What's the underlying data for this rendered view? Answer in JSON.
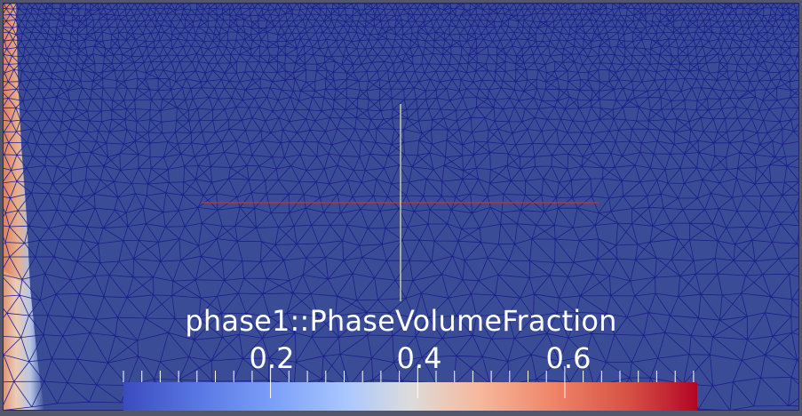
{
  "colorbar": {
    "title": "phase1::PhaseVolumeFraction",
    "tick_labels": [
      "0.2",
      "0.4",
      "0.6"
    ],
    "tick_values": [
      0.2,
      0.4,
      0.6
    ],
    "range": [
      0.0,
      0.78
    ],
    "colormap": "cool-to-warm",
    "colors": {
      "low": "#3b4cc0",
      "mid": "#dddddd",
      "high": "#b40426"
    }
  },
  "scene": {
    "background_color": "#52576e",
    "mesh_fill_color": "#3b4c97",
    "mesh_edge_color": "#1a1f8a",
    "axis_x_color": "#d03030",
    "axis_y_color": "#e8e8a0"
  }
}
